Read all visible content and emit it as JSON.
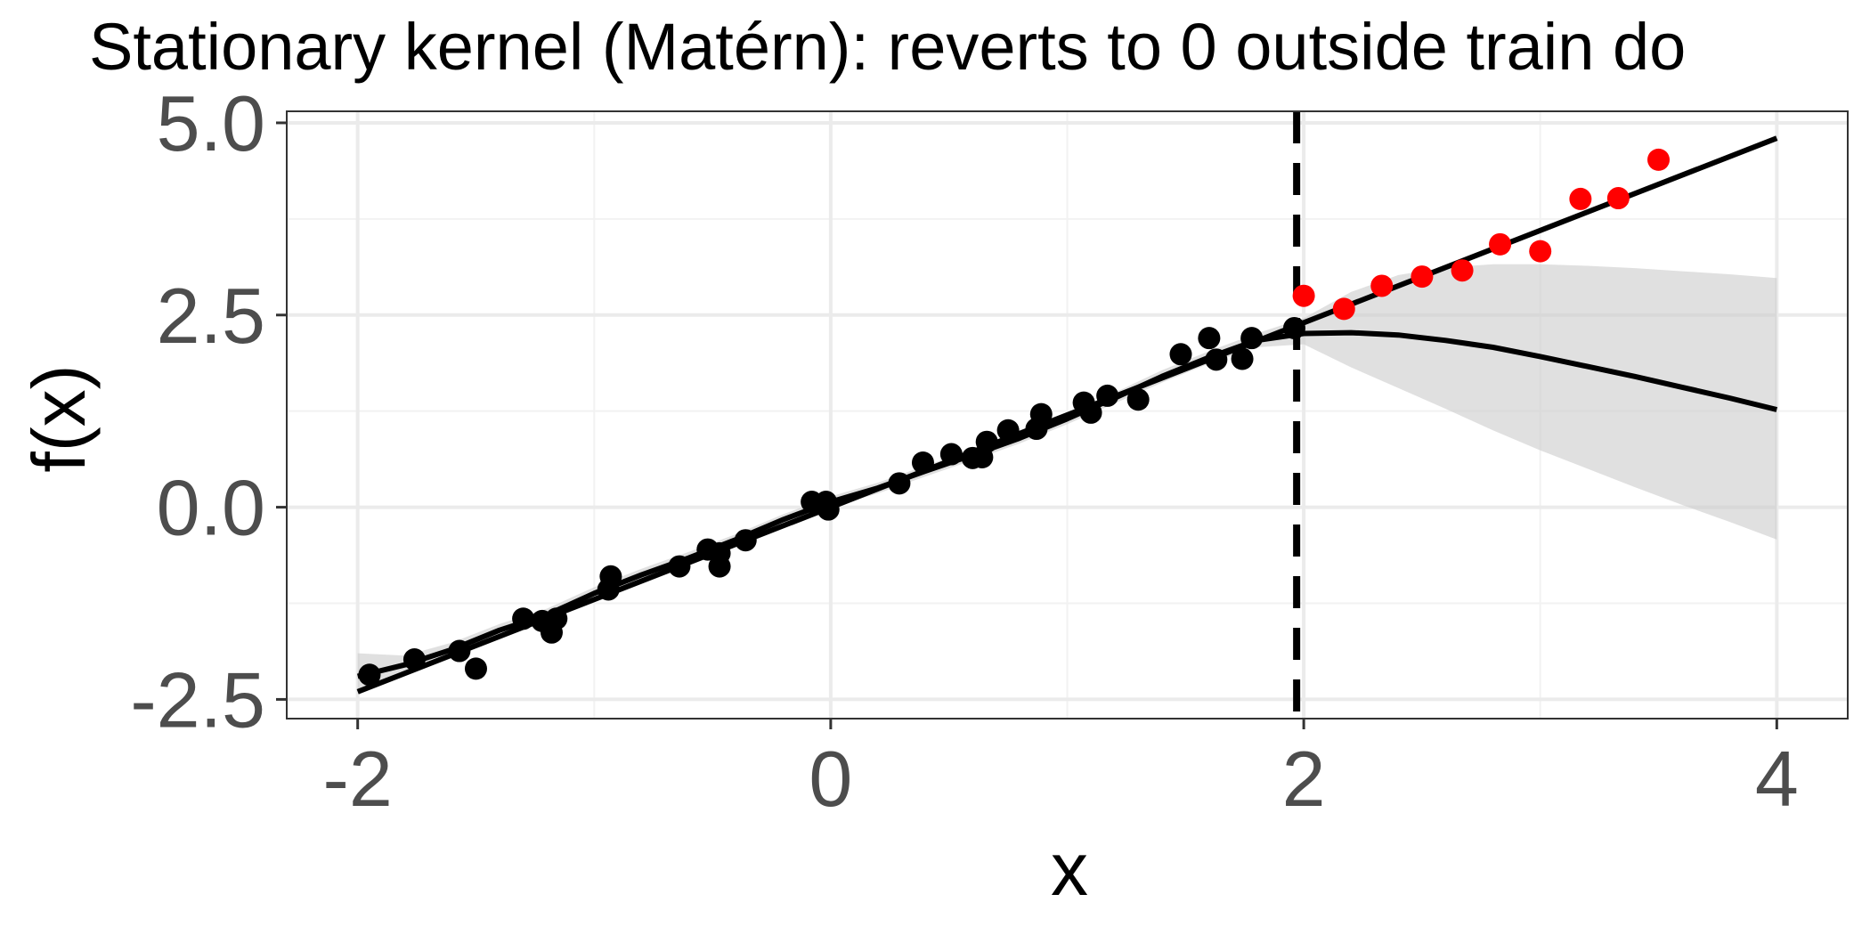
{
  "chart_data": {
    "type": "scatter",
    "title": "Stationary kernel (Matérn): reverts to 0 outside train do",
    "xlabel": "x",
    "ylabel": "f(x)",
    "xlim": [
      -2.3,
      4.3
    ],
    "ylim": [
      -2.75,
      5.15
    ],
    "x_ticks": [
      -2,
      0,
      2,
      4
    ],
    "x_tick_labels": [
      "-2",
      "0",
      "2",
      "4"
    ],
    "y_ticks": [
      -2.5,
      0.0,
      2.5,
      5.0
    ],
    "y_tick_labels": [
      "-2.5",
      "0.0",
      "2.5",
      "5.0"
    ],
    "grid": true,
    "train_boundary_x": 1.97,
    "series": [
      {
        "role": "train points",
        "mark": "scatter",
        "color": "#000000",
        "points": [
          [
            -1.95,
            -2.18
          ],
          [
            -1.76,
            -1.98
          ],
          [
            -1.57,
            -1.87
          ],
          [
            -1.5,
            -2.1
          ],
          [
            -1.3,
            -1.45
          ],
          [
            -1.22,
            -1.48
          ],
          [
            -1.18,
            -1.63
          ],
          [
            -1.16,
            -1.45
          ],
          [
            -0.94,
            -1.07
          ],
          [
            -0.93,
            -0.9
          ],
          [
            -0.64,
            -0.77
          ],
          [
            -0.52,
            -0.55
          ],
          [
            -0.47,
            -0.6
          ],
          [
            -0.47,
            -0.77
          ],
          [
            -0.36,
            -0.43
          ],
          [
            -0.08,
            0.07
          ],
          [
            -0.02,
            0.07
          ],
          [
            -0.01,
            -0.03
          ],
          [
            0.29,
            0.31
          ],
          [
            0.39,
            0.58
          ],
          [
            0.51,
            0.69
          ],
          [
            0.6,
            0.64
          ],
          [
            0.64,
            0.65
          ],
          [
            0.66,
            0.85
          ],
          [
            0.75,
            1.0
          ],
          [
            0.87,
            1.02
          ],
          [
            0.89,
            1.21
          ],
          [
            1.07,
            1.36
          ],
          [
            1.1,
            1.23
          ],
          [
            1.17,
            1.45
          ],
          [
            1.3,
            1.4
          ],
          [
            1.48,
            1.99
          ],
          [
            1.6,
            2.2
          ],
          [
            1.63,
            1.92
          ],
          [
            1.74,
            1.93
          ],
          [
            1.78,
            2.2
          ],
          [
            1.96,
            2.33
          ]
        ]
      },
      {
        "role": "test points",
        "mark": "scatter",
        "color": "#ff0000",
        "points": [
          [
            2.0,
            2.75
          ],
          [
            2.17,
            2.58
          ],
          [
            2.33,
            2.88
          ],
          [
            2.5,
            3.0
          ],
          [
            2.67,
            3.08
          ],
          [
            2.83,
            3.42
          ],
          [
            3.0,
            3.33
          ],
          [
            3.17,
            4.01
          ],
          [
            3.33,
            4.02
          ],
          [
            3.5,
            4.52
          ]
        ]
      },
      {
        "role": "true trend line",
        "mark": "line",
        "color": "#000000",
        "x": [
          -2,
          4
        ],
        "y": [
          -2.4,
          4.8
        ]
      },
      {
        "role": "GP posterior mean",
        "mark": "line",
        "color": "#000000",
        "x": [
          -2.0,
          -1.8,
          -1.6,
          -1.4,
          -1.2,
          -1.0,
          -0.8,
          -0.6,
          -0.4,
          -0.2,
          0.0,
          0.2,
          0.4,
          0.6,
          0.8,
          1.0,
          1.2,
          1.4,
          1.6,
          1.8,
          2.0,
          2.2,
          2.4,
          2.6,
          2.8,
          3.0,
          3.2,
          3.4,
          3.6,
          3.8,
          4.0
        ],
        "y": [
          -2.2,
          -2.05,
          -1.85,
          -1.6,
          -1.4,
          -1.12,
          -0.88,
          -0.66,
          -0.42,
          -0.16,
          0.07,
          0.25,
          0.47,
          0.68,
          0.9,
          1.15,
          1.42,
          1.7,
          1.95,
          2.17,
          2.26,
          2.27,
          2.24,
          2.17,
          2.08,
          1.96,
          1.83,
          1.7,
          1.56,
          1.42,
          1.27
        ]
      },
      {
        "role": "GP confidence band",
        "mark": "area",
        "color": "#cccccc",
        "x": [
          -2.0,
          -1.8,
          -1.6,
          -1.4,
          -1.2,
          -1.0,
          -0.8,
          -0.6,
          -0.4,
          -0.2,
          0.0,
          0.2,
          0.4,
          0.6,
          0.8,
          1.0,
          1.2,
          1.4,
          1.6,
          1.8,
          2.0,
          2.2,
          2.4,
          2.6,
          2.8,
          3.0,
          3.2,
          3.4,
          3.6,
          3.8,
          4.0
        ],
        "lower": [
          -2.4,
          -2.15,
          -1.93,
          -1.68,
          -1.48,
          -1.2,
          -0.96,
          -0.73,
          -0.49,
          -0.23,
          0.0,
          0.18,
          0.4,
          0.61,
          0.83,
          1.08,
          1.35,
          1.62,
          1.87,
          2.08,
          2.12,
          1.82,
          1.55,
          1.28,
          1.0,
          0.74,
          0.5,
          0.26,
          0.03,
          -0.19,
          -0.42
        ],
        "upper": [
          -1.9,
          -1.93,
          -1.76,
          -1.52,
          -1.32,
          -1.04,
          -0.8,
          -0.58,
          -0.35,
          -0.09,
          0.14,
          0.32,
          0.54,
          0.75,
          0.97,
          1.22,
          1.49,
          1.78,
          2.03,
          2.26,
          2.46,
          2.8,
          3.02,
          3.12,
          3.16,
          3.16,
          3.14,
          3.11,
          3.07,
          3.03,
          2.98
        ]
      }
    ]
  }
}
